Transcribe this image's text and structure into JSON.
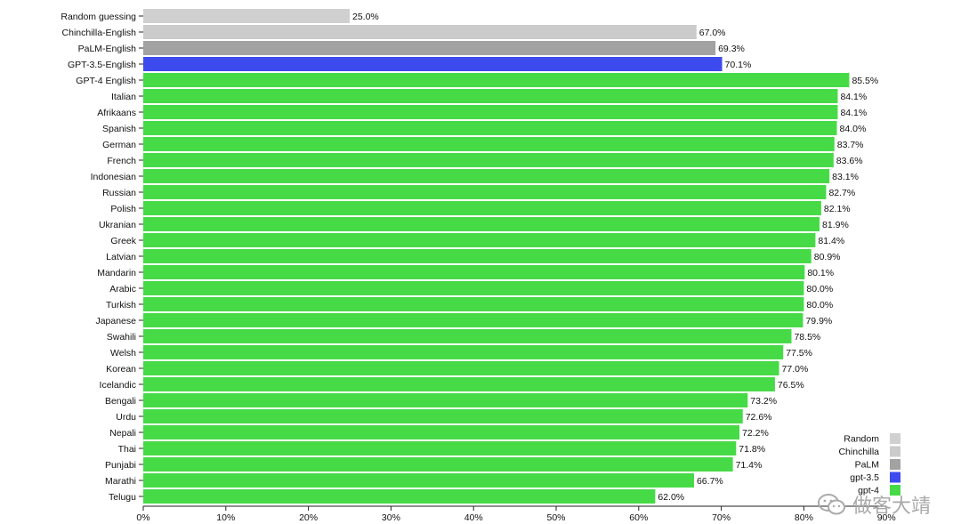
{
  "chart_data": {
    "type": "bar",
    "orientation": "horizontal",
    "categories": [
      "Random guessing",
      "Chinchilla-English",
      "PaLM-English",
      "GPT-3.5-English",
      "GPT-4 English",
      "Italian",
      "Afrikaans",
      "Spanish",
      "German",
      "French",
      "Indonesian",
      "Russian",
      "Polish",
      "Ukranian",
      "Greek",
      "Latvian",
      "Mandarin",
      "Arabic",
      "Turkish",
      "Japanese",
      "Swahili",
      "Welsh",
      "Korean",
      "Icelandic",
      "Bengali",
      "Urdu",
      "Nepali",
      "Thai",
      "Punjabi",
      "Marathi",
      "Telugu"
    ],
    "values": [
      25.0,
      67.0,
      69.3,
      70.1,
      85.5,
      84.1,
      84.1,
      84.0,
      83.7,
      83.6,
      83.1,
      82.7,
      82.1,
      81.9,
      81.4,
      80.9,
      80.1,
      80.0,
      80.0,
      79.9,
      78.5,
      77.5,
      77.0,
      76.5,
      73.2,
      72.6,
      72.2,
      71.8,
      71.4,
      66.7,
      62.0
    ],
    "value_labels": [
      "25.0%",
      "67.0%",
      "69.3%",
      "70.1%",
      "85.5%",
      "84.1%",
      "84.1%",
      "84.0%",
      "83.7%",
      "83.6%",
      "83.1%",
      "82.7%",
      "82.1%",
      "81.9%",
      "81.4%",
      "80.9%",
      "80.1%",
      "80.0%",
      "80.0%",
      "79.9%",
      "78.5%",
      "77.5%",
      "77.0%",
      "76.5%",
      "73.2%",
      "72.6%",
      "72.2%",
      "71.8%",
      "71.4%",
      "66.7%",
      "62.0%"
    ],
    "groups": [
      "Random",
      "Chinchilla",
      "PaLM",
      "gpt-3.5",
      "gpt-4",
      "gpt-4",
      "gpt-4",
      "gpt-4",
      "gpt-4",
      "gpt-4",
      "gpt-4",
      "gpt-4",
      "gpt-4",
      "gpt-4",
      "gpt-4",
      "gpt-4",
      "gpt-4",
      "gpt-4",
      "gpt-4",
      "gpt-4",
      "gpt-4",
      "gpt-4",
      "gpt-4",
      "gpt-4",
      "gpt-4",
      "gpt-4",
      "gpt-4",
      "gpt-4",
      "gpt-4",
      "gpt-4",
      "gpt-4"
    ],
    "xlim": [
      0,
      90
    ],
    "xticks": [
      "0%",
      "10%",
      "20%",
      "30%",
      "40%",
      "50%",
      "60%",
      "70%",
      "80%",
      "90%"
    ],
    "legend": {
      "position": "bottom-right",
      "entries": [
        {
          "name": "Random",
          "color": "#d0d0d0"
        },
        {
          "name": "Chinchilla",
          "color": "#cbcbcb"
        },
        {
          "name": "PaLM",
          "color": "#a2a2a2"
        },
        {
          "name": "gpt-3.5",
          "color": "#3d4bee"
        },
        {
          "name": "gpt-4",
          "color": "#47da47"
        }
      ]
    },
    "grid": false,
    "title": "",
    "xlabel": "",
    "ylabel": ""
  },
  "watermark": {
    "text": "做客大靖",
    "icon": "wechat-icon"
  }
}
